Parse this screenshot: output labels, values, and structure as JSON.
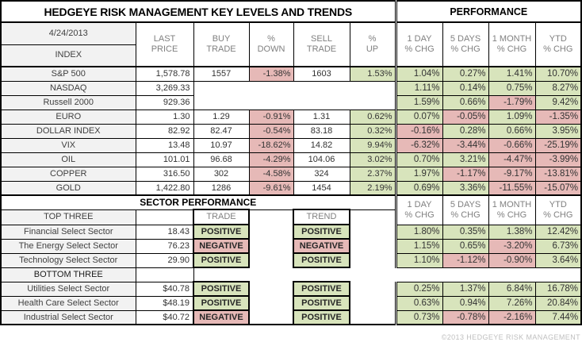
{
  "title": "HEDGEYE RISK MANAGEMENT KEY LEVELS AND TRENDS",
  "performance_label": "PERFORMANCE",
  "hdr": {
    "date": "4/24/2013",
    "index": "INDEX",
    "last": "LAST\nPRICE",
    "buy": "BUY\nTRADE",
    "down": "%\nDOWN",
    "sell": "SELL\nTRADE",
    "up": "%\nUP",
    "d1": "1 DAY\n% CHG",
    "d5": "5 DAYS\n% CHG",
    "m1": "1 MONTH\n% CHG",
    "ytd": "YTD\n% CHG"
  },
  "index_rows": [
    {
      "name": "S&P 500",
      "last": "1,578.78",
      "buy": "1557",
      "down": "-1.38%",
      "sell": "1603",
      "up": "1.53%",
      "perf": [
        "1.04%",
        "0.27%",
        "1.41%",
        "10.70%"
      ]
    },
    {
      "name": "NASDAQ",
      "last": "3,269.33",
      "buy": null,
      "down": null,
      "sell": null,
      "up": null,
      "perf": [
        "1.11%",
        "0.14%",
        "0.75%",
        "8.27%"
      ]
    },
    {
      "name": "Russell 2000",
      "last": "929.36",
      "buy": null,
      "down": null,
      "sell": null,
      "up": null,
      "perf": [
        "1.59%",
        "0.66%",
        "-1.79%",
        "9.42%"
      ]
    },
    {
      "name": "EURO",
      "last": "1.30",
      "buy": "1.29",
      "down": "-0.91%",
      "sell": "1.31",
      "up": "0.62%",
      "perf": [
        "0.07%",
        "-0.05%",
        "1.09%",
        "-1.35%"
      ]
    },
    {
      "name": "DOLLAR INDEX",
      "last": "82.92",
      "buy": "82.47",
      "down": "-0.54%",
      "sell": "83.18",
      "up": "0.32%",
      "perf": [
        "-0.16%",
        "0.28%",
        "0.66%",
        "3.95%"
      ]
    },
    {
      "name": "VIX",
      "last": "13.48",
      "buy": "10.97",
      "down": "-18.62%",
      "sell": "14.82",
      "up": "9.94%",
      "perf": [
        "-6.32%",
        "-3.44%",
        "-0.66%",
        "-25.19%"
      ]
    },
    {
      "name": "OIL",
      "last": "101.01",
      "buy": "96.68",
      "down": "-4.29%",
      "sell": "104.06",
      "up": "3.02%",
      "perf": [
        "0.70%",
        "3.21%",
        "-4.47%",
        "-3.99%"
      ]
    },
    {
      "name": "COPPER",
      "last": "316.50",
      "buy": "302",
      "down": "-4.58%",
      "sell": "324",
      "up": "2.37%",
      "perf": [
        "1.97%",
        "-1.17%",
        "-9.17%",
        "-13.81%"
      ]
    },
    {
      "name": "GOLD",
      "last": "1,422.80",
      "buy": "1286",
      "down": "-9.61%",
      "sell": "1454",
      "up": "2.19%",
      "perf": [
        "0.69%",
        "3.36%",
        "-11.55%",
        "-15.07%"
      ]
    }
  ],
  "sector": {
    "title": "SECTOR PERFORMANCE",
    "top_label": "TOP THREE",
    "bottom_label": "BOTTOM THREE",
    "trade_label": "TRADE",
    "trend_label": "TREND",
    "top_rows": [
      {
        "name": "Financial Select Sector",
        "price": "18.43",
        "trade": "POSITIVE",
        "trend": "POSITIVE",
        "perf": [
          "1.80%",
          "0.35%",
          "1.38%",
          "12.42%"
        ]
      },
      {
        "name": "The Energy Select Sector",
        "price": "76.23",
        "trade": "NEGATIVE",
        "trend": "NEGATIVE",
        "perf": [
          "1.15%",
          "0.65%",
          "-3.20%",
          "6.73%"
        ]
      },
      {
        "name": "Technology Select Sector",
        "price": "29.90",
        "trade": "POSITIVE",
        "trend": "POSITIVE",
        "perf": [
          "1.10%",
          "-1.12%",
          "-0.90%",
          "3.64%"
        ]
      }
    ],
    "bottom_rows": [
      {
        "name": "Utilities Select Sector",
        "price": "$40.78",
        "trade": "POSITIVE",
        "trend": "POSITIVE",
        "perf": [
          "0.25%",
          "1.37%",
          "6.84%",
          "16.78%"
        ]
      },
      {
        "name": "Health Care Select Sector",
        "price": "$48.19",
        "trade": "POSITIVE",
        "trend": "POSITIVE",
        "perf": [
          "0.63%",
          "0.94%",
          "7.26%",
          "20.84%"
        ]
      },
      {
        "name": "Industrial Select Sector",
        "price": "$40.72",
        "trade": "NEGATIVE",
        "trend": "POSITIVE",
        "perf": [
          "0.73%",
          "-0.78%",
          "-2.16%",
          "7.44%"
        ]
      }
    ]
  },
  "footer": "©2013 HEDGEYE RISK MANAGEMENT",
  "colors": {
    "positive_bg": "#d8e4bc",
    "negative_bg": "#e6b9b7",
    "row_label_bg": "#f2f2f2",
    "header_text": "#808080"
  }
}
